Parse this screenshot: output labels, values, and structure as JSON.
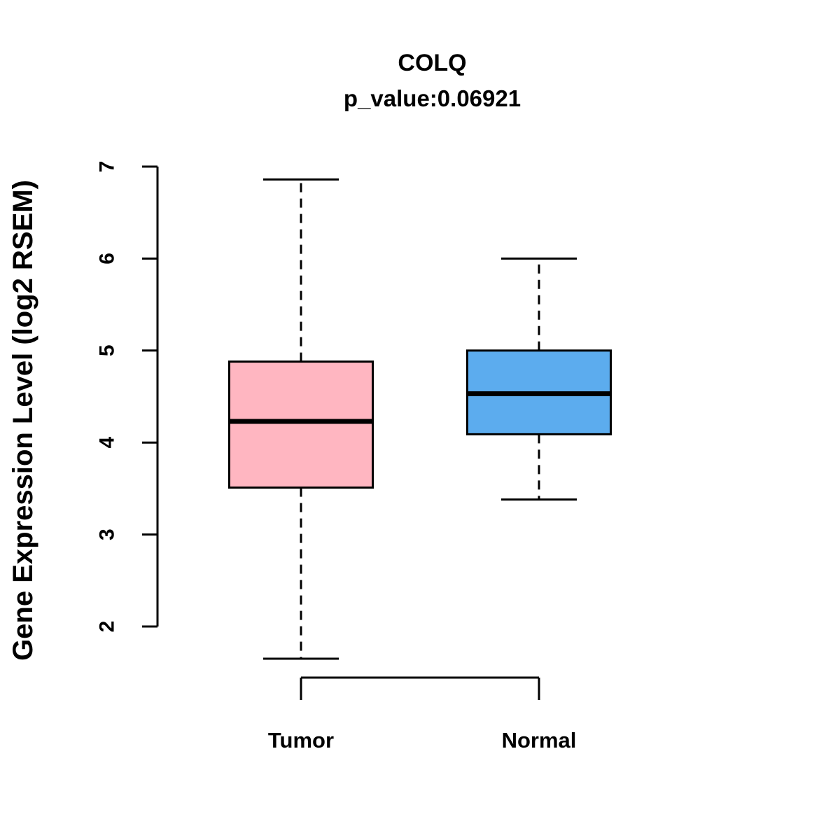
{
  "chart_data": {
    "type": "boxplot",
    "title": "COLQ",
    "subtitle": "p_value:0.06921",
    "ylabel": "Gene Expression Level (log2 RSEM)",
    "ylim": [
      2,
      7
    ],
    "yticks": [
      2,
      3,
      4,
      5,
      6,
      7
    ],
    "categories": [
      "Tumor",
      "Normal"
    ],
    "legend_position": "none",
    "grid": false,
    "series": [
      {
        "name": "Tumor",
        "color": "#FFB6C1",
        "whisker_low": 1.65,
        "q1": 3.51,
        "median": 4.23,
        "q3": 4.88,
        "whisker_high": 6.86
      },
      {
        "name": "Normal",
        "color": "#5CACEE",
        "whisker_low": 3.38,
        "q1": 4.09,
        "median": 4.53,
        "q3": 5.0,
        "whisker_high": 6.0
      }
    ]
  }
}
